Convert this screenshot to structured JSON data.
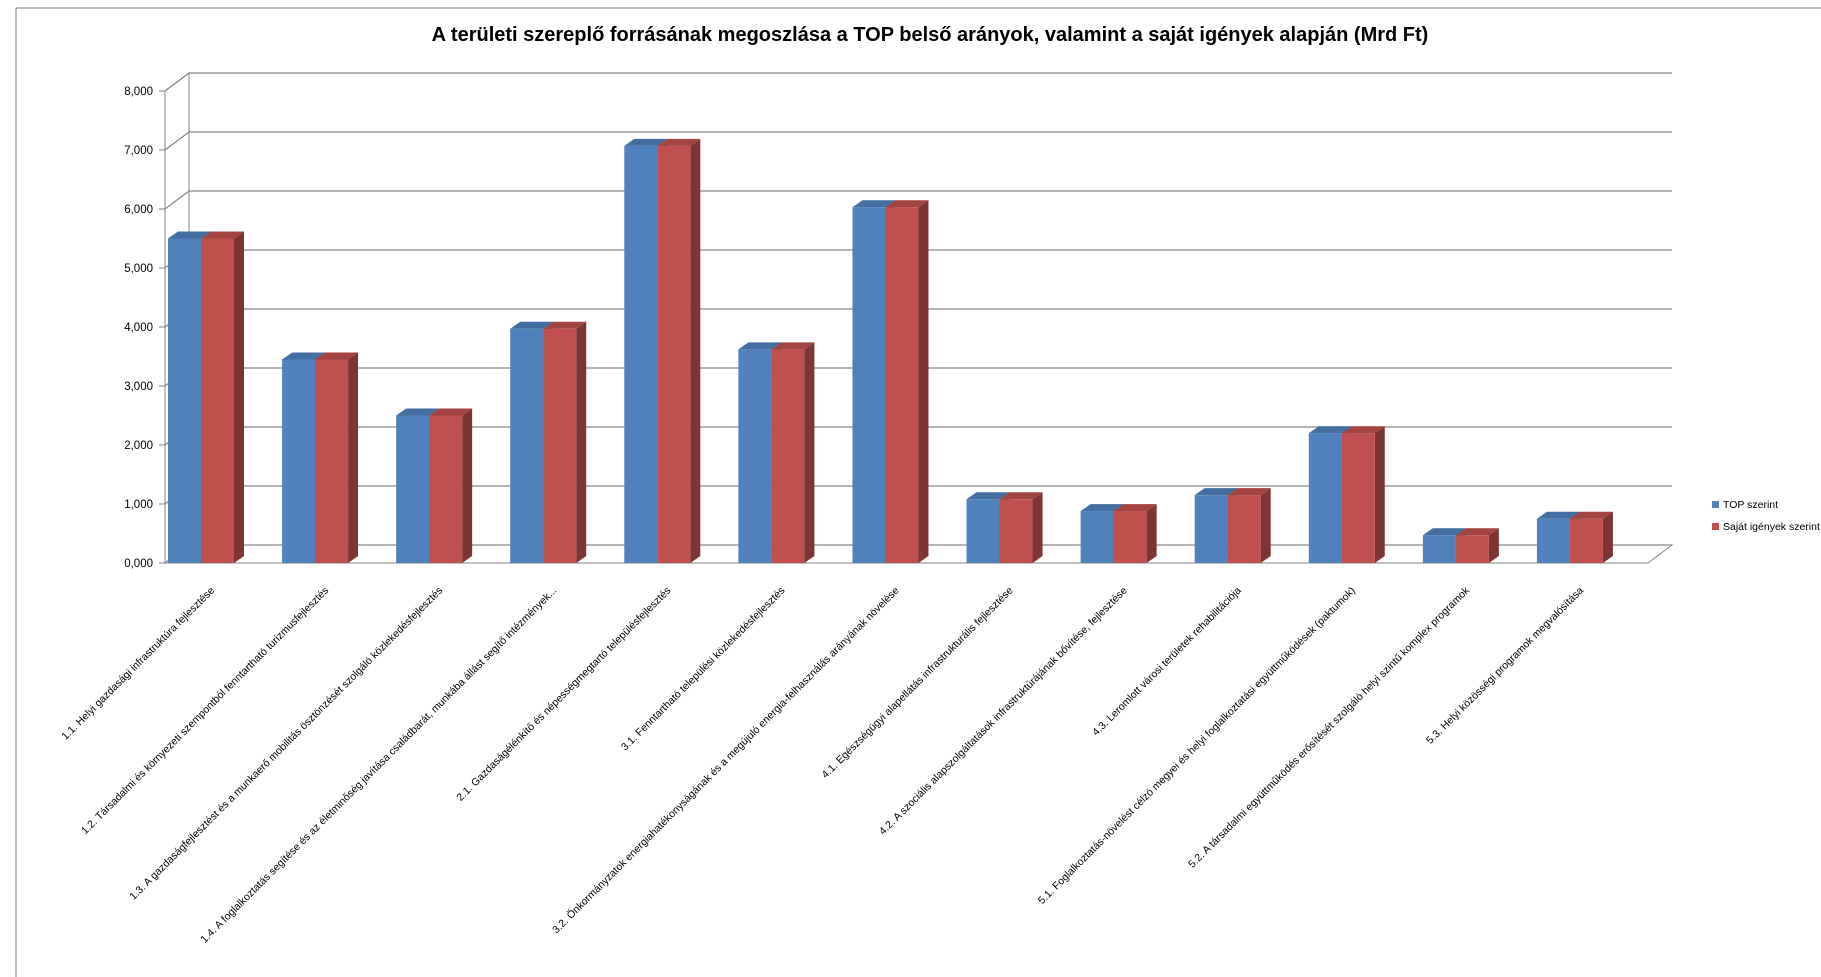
{
  "chart_data": {
    "type": "bar",
    "title": "A területi szereplő forrásának megoszlása a TOP belső arányok, valamint a saját igények alapján (Mrd Ft)",
    "xlabel": "",
    "ylabel": "",
    "ylim": [
      0,
      8
    ],
    "yticks": [
      "0,000",
      "1,000",
      "2,000",
      "3,000",
      "4,000",
      "5,000",
      "6,000",
      "7,000",
      "8,000"
    ],
    "grid": true,
    "legend_position": "right",
    "categories": [
      "1.1. Helyi gazdasági infrastruktúra fejlesztése",
      "1.2. Társadalmi és környezeti szempontból fenntartható turizmusfejlesztés",
      "1.3. A gazdaságfejlesztést és a munkaerő mobilitás ösztönzését szolgáló közlekedésfejlesztés",
      "1.4. A foglalkoztatás segítése és az életminőség javítása családbarát, munkába állást segítő intézmények...",
      "2.1. Gazdaságélénkítő és népességmegtartó településfejlesztés",
      "3.1. Fenntartható települési közlekedésfejlesztés",
      "3.2. Önkormányzatok energiahatékonyságának és a megújuló energia-felhasználás arányának növelése",
      "4.1. Egészségügyi alapellátás infrastrukturális fejlesztése",
      "4.2. A szociális alapszolgáltatások infrastruktúrájának bővítése, fejlesztése",
      "4.3. Leromlott városi területek rehabilitációja",
      "5.1. Foglalkoztatás-növelést célzó megyei és helyi foglalkoztatási együttműködések (paktumok)",
      "5.2. A társadalmi együttműködés erősítését szolgáló helyi szintű komplex programok",
      "5.3. Helyi közösségi programok megvalósítása"
    ],
    "series": [
      {
        "name": "TOP szerint",
        "color": "#4F81BD",
        "values": [
          5.5,
          3.45,
          2.5,
          3.97,
          7.07,
          3.62,
          6.03,
          1.08,
          0.88,
          1.15,
          2.2,
          0.47,
          0.75
        ]
      },
      {
        "name": "Saját igények szerint",
        "color": "#C0504D",
        "values": [
          5.5,
          3.45,
          2.5,
          3.97,
          7.07,
          3.62,
          6.03,
          1.08,
          0.88,
          1.15,
          2.2,
          0.47,
          0.75
        ]
      }
    ]
  }
}
